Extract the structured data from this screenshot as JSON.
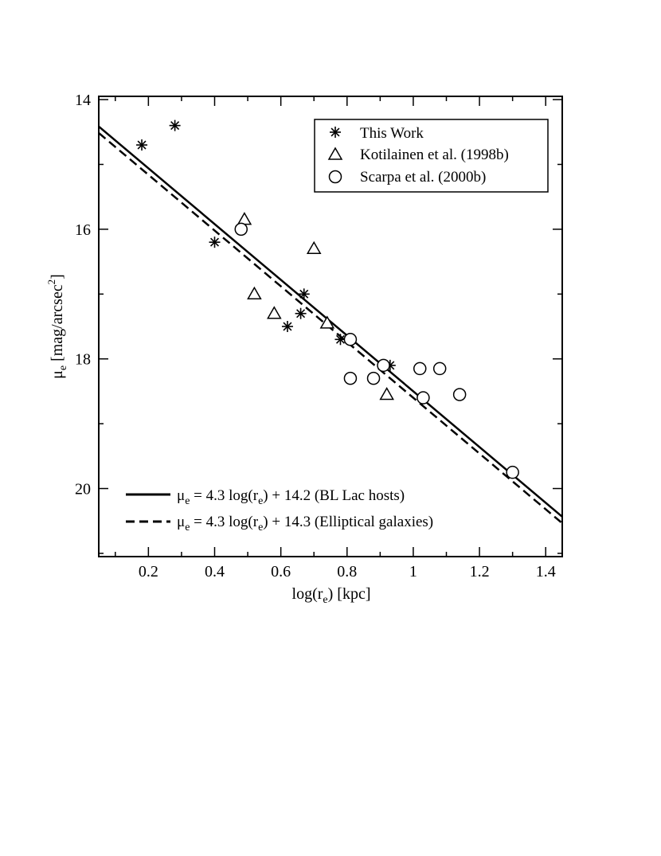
{
  "chart_data": {
    "type": "scatter",
    "xlabel": {
      "main": "log(r",
      "sub": "e",
      "rest": ") [kpc]"
    },
    "ylabel": {
      "main": "μ",
      "sub": "e",
      "mid": " [mag/arcsec",
      "sup": "2",
      "end": "]"
    },
    "xlim": [
      0.05,
      1.45
    ],
    "ylim": [
      21.05,
      13.95
    ],
    "y_inverted": true,
    "x_ticks": [
      0.2,
      0.4,
      0.6,
      0.8,
      1,
      1.2,
      1.4
    ],
    "x_tick_labels": [
      "0.2",
      "0.4",
      "0.6",
      "0.8",
      "1",
      "1.2",
      "1.4"
    ],
    "y_ticks": [
      14,
      16,
      18,
      20
    ],
    "y_tick_labels": [
      "14",
      "16",
      "18",
      "20"
    ],
    "grid": false,
    "series": [
      {
        "name": "This Work",
        "marker": "asterisk",
        "x": [
          0.18,
          0.28,
          0.4,
          0.62,
          0.66,
          0.67,
          0.78,
          0.93
        ],
        "y": [
          14.7,
          14.4,
          16.2,
          17.5,
          17.3,
          17.0,
          17.7,
          18.1
        ]
      },
      {
        "name": "Kotilainen et al. (1998b)",
        "marker": "triangle",
        "x": [
          0.49,
          0.52,
          0.58,
          0.7,
          0.74,
          0.92
        ],
        "y": [
          15.85,
          17.0,
          17.3,
          16.3,
          17.45,
          18.55
        ]
      },
      {
        "name": "Scarpa et al. (2000b)",
        "marker": "circle",
        "x": [
          0.48,
          0.81,
          0.81,
          0.88,
          0.91,
          1.02,
          1.03,
          1.08,
          1.14,
          1.3
        ],
        "y": [
          16.0,
          17.7,
          18.3,
          18.3,
          18.1,
          18.15,
          18.6,
          18.15,
          18.55,
          19.75
        ]
      }
    ],
    "lines": [
      {
        "name": "BL Lac hosts",
        "style": "solid",
        "slope": 4.3,
        "intercept": 14.2,
        "legend": {
          "mu": "μ",
          "sub1": "e",
          "a": " = 4.3 log(r",
          "sub2": "e",
          "b": ") + 14.2 (BL Lac hosts)"
        }
      },
      {
        "name": "Elliptical galaxies",
        "style": "dashed",
        "slope": 4.3,
        "intercept": 14.3,
        "legend": {
          "mu": "μ",
          "sub1": "e",
          "a": " = 4.3 log(r",
          "sub2": "e",
          "b": ") + 14.3 (Elliptical galaxies)"
        }
      }
    ],
    "legend_placement": [
      "top-right",
      "bottom-left"
    ]
  }
}
